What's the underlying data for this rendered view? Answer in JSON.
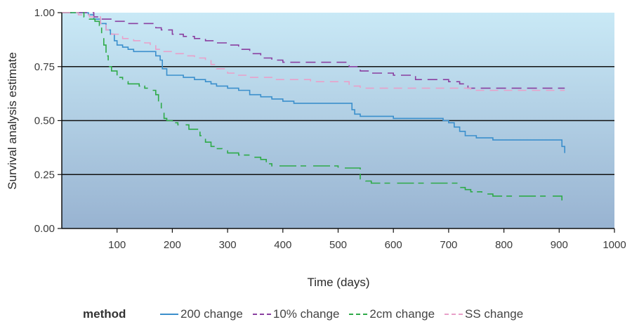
{
  "chart_data": {
    "type": "line",
    "title": "",
    "xlabel": "Time (days)",
    "ylabel": "Survival analysis estimate",
    "xlim": [
      0,
      1000
    ],
    "ylim": [
      0,
      1
    ],
    "x_ticks": [
      100,
      200,
      300,
      400,
      500,
      600,
      700,
      800,
      900,
      1000
    ],
    "x_tick_labels": [
      "100",
      "200",
      "300",
      "400",
      "500",
      "600",
      "700",
      "800",
      "900",
      "1000"
    ],
    "y_ticks": [
      0,
      0.25,
      0.5,
      0.75,
      1.0
    ],
    "y_tick_labels": [
      "0.00",
      "0.25",
      "0.50",
      "0.75",
      "1.00"
    ],
    "grid": "horizontal",
    "legend_title": "method",
    "legend_position": "bottom",
    "series": [
      {
        "name": "200 change",
        "color": "#3b8fcc",
        "dash": "solid",
        "x": [
          0,
          48,
          58,
          70,
          80,
          88,
          95,
          100,
          110,
          120,
          130,
          150,
          170,
          178,
          182,
          190,
          200,
          220,
          240,
          260,
          270,
          280,
          300,
          320,
          340,
          360,
          380,
          400,
          420,
          450,
          480,
          520,
          525,
          530,
          540,
          600,
          650,
          690,
          700,
          710,
          720,
          730,
          750,
          780,
          880,
          900,
          905,
          910
        ],
        "y": [
          1.0,
          0.99,
          0.97,
          0.95,
          0.92,
          0.9,
          0.87,
          0.85,
          0.84,
          0.83,
          0.82,
          0.82,
          0.8,
          0.78,
          0.74,
          0.71,
          0.71,
          0.7,
          0.69,
          0.68,
          0.67,
          0.66,
          0.65,
          0.64,
          0.62,
          0.61,
          0.6,
          0.59,
          0.58,
          0.58,
          0.58,
          0.58,
          0.55,
          0.53,
          0.52,
          0.51,
          0.51,
          0.5,
          0.49,
          0.47,
          0.45,
          0.43,
          0.42,
          0.41,
          0.41,
          0.41,
          0.38,
          0.35
        ]
      },
      {
        "name": "10% change",
        "color": "#8a3fa0",
        "dash": "14,8",
        "x": [
          0,
          55,
          58,
          70,
          90,
          120,
          160,
          170,
          180,
          200,
          220,
          240,
          260,
          280,
          300,
          320,
          340,
          360,
          380,
          400,
          450,
          480,
          500,
          520,
          540,
          560,
          600,
          640,
          700,
          720,
          735,
          760,
          800,
          860,
          910
        ],
        "y": [
          1.0,
          1.0,
          0.98,
          0.97,
          0.96,
          0.95,
          0.95,
          0.93,
          0.92,
          0.9,
          0.89,
          0.88,
          0.87,
          0.86,
          0.85,
          0.83,
          0.81,
          0.79,
          0.78,
          0.77,
          0.77,
          0.77,
          0.77,
          0.75,
          0.73,
          0.72,
          0.71,
          0.69,
          0.68,
          0.67,
          0.65,
          0.65,
          0.65,
          0.65,
          0.65
        ]
      },
      {
        "name": "2cm change",
        "color": "#2eaa48",
        "dash": "24,6,8,10",
        "x": [
          0,
          40,
          50,
          60,
          68,
          72,
          76,
          80,
          84,
          90,
          100,
          110,
          120,
          140,
          150,
          160,
          170,
          175,
          180,
          185,
          190,
          200,
          210,
          230,
          250,
          260,
          270,
          280,
          290,
          300,
          320,
          340,
          360,
          370,
          380,
          400,
          450,
          480,
          500,
          520,
          540,
          550,
          560,
          580,
          600,
          700,
          720,
          730,
          740,
          760,
          780,
          800,
          900,
          905
        ],
        "y": [
          1.0,
          0.98,
          0.97,
          0.96,
          0.94,
          0.9,
          0.85,
          0.8,
          0.75,
          0.73,
          0.7,
          0.68,
          0.67,
          0.66,
          0.65,
          0.64,
          0.62,
          0.58,
          0.54,
          0.51,
          0.5,
          0.49,
          0.48,
          0.46,
          0.43,
          0.4,
          0.38,
          0.37,
          0.36,
          0.35,
          0.34,
          0.33,
          0.32,
          0.3,
          0.29,
          0.29,
          0.29,
          0.29,
          0.28,
          0.28,
          0.23,
          0.22,
          0.21,
          0.21,
          0.21,
          0.21,
          0.19,
          0.18,
          0.17,
          0.16,
          0.15,
          0.15,
          0.15,
          0.13
        ]
      },
      {
        "name": "SS change",
        "color": "#e9a0c9",
        "dash": "12,8",
        "x": [
          0,
          30,
          50,
          70,
          80,
          90,
          110,
          130,
          150,
          160,
          170,
          180,
          200,
          220,
          240,
          260,
          270,
          280,
          300,
          320,
          340,
          360,
          380,
          400,
          450,
          500,
          520,
          540,
          600,
          650,
          700,
          720,
          740,
          760,
          800,
          910
        ],
        "y": [
          1.0,
          0.99,
          0.98,
          0.95,
          0.92,
          0.9,
          0.88,
          0.87,
          0.86,
          0.85,
          0.83,
          0.82,
          0.81,
          0.8,
          0.79,
          0.78,
          0.76,
          0.74,
          0.72,
          0.71,
          0.7,
          0.7,
          0.69,
          0.69,
          0.68,
          0.68,
          0.66,
          0.65,
          0.65,
          0.65,
          0.65,
          0.65,
          0.64,
          0.64,
          0.64,
          0.64
        ]
      }
    ]
  }
}
